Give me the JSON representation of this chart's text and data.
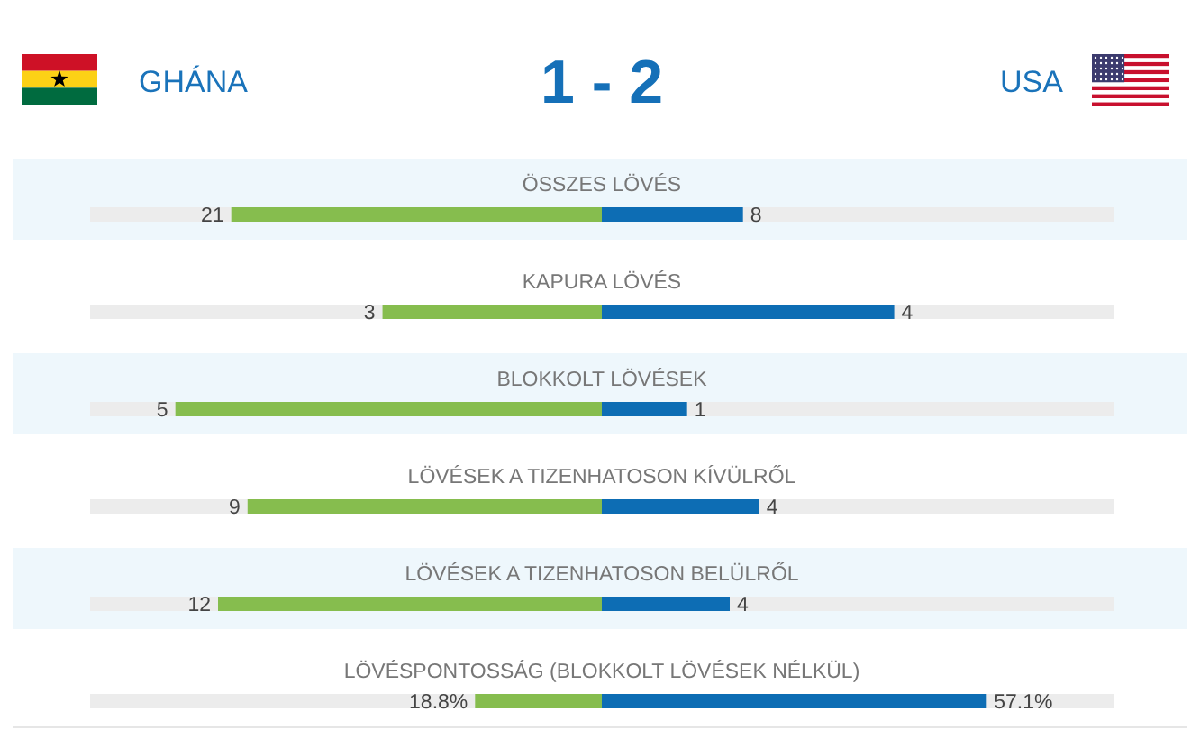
{
  "chart_data": [
    {
      "type": "bar",
      "orientation": "horizontal",
      "stacked": true,
      "title": "1 - 2",
      "annotations": [
        "GHÁNA",
        "USA"
      ],
      "tick_labels": "y",
      "categories": [
        "ÖSSZES LÖVÉS"
      ],
      "series": [
        {
          "color": "#86bd4e",
          "values": [
            21
          ],
          "value_labels": [
            "21"
          ]
        },
        {
          "color": "#0d6db4",
          "values": [
            8
          ],
          "value_labels": [
            "8"
          ]
        }
      ]
    },
    {
      "type": "bar",
      "orientation": "horizontal",
      "stacked": true,
      "tick_labels": "y",
      "categories": [
        "KAPURA LÖVÉS"
      ],
      "series": [
        {
          "color": "#86bd4e",
          "values": [
            3
          ],
          "value_labels": [
            "3"
          ]
        },
        {
          "color": "#0d6db4",
          "values": [
            4
          ],
          "value_labels": [
            "4"
          ]
        }
      ]
    },
    {
      "type": "bar",
      "orientation": "horizontal",
      "stacked": true,
      "tick_labels": "y",
      "categories": [
        "BLOKKOLT LÖVÉSEK"
      ],
      "series": [
        {
          "color": "#86bd4e",
          "values": [
            5
          ],
          "value_labels": [
            "5"
          ]
        },
        {
          "color": "#0d6db4",
          "values": [
            1
          ],
          "value_labels": [
            "1"
          ]
        }
      ]
    },
    {
      "type": "bar",
      "orientation": "horizontal",
      "stacked": true,
      "tick_labels": "y",
      "categories": [
        "LÖVÉSEK A TIZENHATOSON KÍVÜLRŐL"
      ],
      "series": [
        {
          "color": "#86bd4e",
          "values": [
            9
          ],
          "value_labels": [
            "9"
          ]
        },
        {
          "color": "#0d6db4",
          "values": [
            4
          ],
          "value_labels": [
            "4"
          ]
        }
      ]
    },
    {
      "type": "bar",
      "orientation": "horizontal",
      "stacked": true,
      "tick_labels": "y",
      "categories": [
        "LÖVÉSEK A TIZENHATOSON BELÜLRŐL"
      ],
      "series": [
        {
          "color": "#86bd4e",
          "values": [
            12
          ],
          "value_labels": [
            "12"
          ]
        },
        {
          "color": "#0d6db4",
          "values": [
            4
          ],
          "value_labels": [
            "4"
          ]
        }
      ]
    },
    {
      "type": "bar",
      "orientation": "horizontal",
      "stacked": true,
      "tick_labels": "y",
      "categories": [
        "LÖVÉSPONTOSSÁG (BLOKKOLT LÖVÉSEK NÉLKÜL)"
      ],
      "series": [
        {
          "color": "#86bd4e",
          "values": [
            18.8
          ],
          "value_labels": [
            "18.8%"
          ]
        },
        {
          "color": "#0d6db4",
          "values": [
            57.1
          ],
          "value_labels": [
            "57.1%"
          ]
        }
      ]
    }
  ]
}
